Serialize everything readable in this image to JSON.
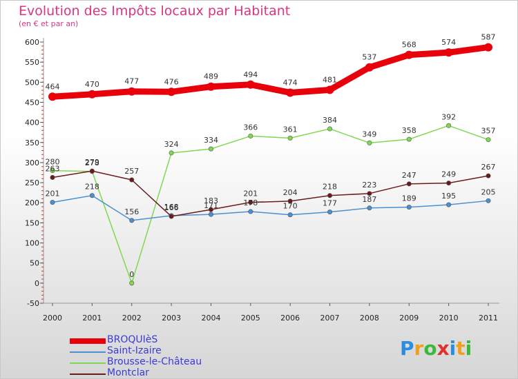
{
  "title": "Evolution des Impôts locaux par Habitant",
  "subtitle": "(en € et par an)",
  "logo": {
    "text": "Proxiti",
    "letters": [
      "P",
      "r",
      "o",
      "x",
      "i",
      "t",
      "i"
    ],
    "colors": [
      "#2a8de0",
      "#f0a020",
      "#3cb83c",
      "#e03030",
      "#2a8de0",
      "#f0a020",
      "#3cb83c"
    ]
  },
  "chart_data": {
    "type": "line",
    "categories": [
      "2000",
      "2001",
      "2002",
      "2003",
      "2004",
      "2005",
      "2006",
      "2007",
      "2008",
      "2009",
      "2010",
      "2011"
    ],
    "ylim": [
      -50,
      600
    ],
    "yticks": [
      -50,
      0,
      50,
      100,
      150,
      200,
      250,
      300,
      350,
      400,
      450,
      500,
      550,
      600
    ],
    "grid": false,
    "legend_position": "bottom-left",
    "series": [
      {
        "name": "BROQUIèS",
        "color": "#e8000b",
        "values": [
          464,
          470,
          477,
          476,
          489,
          494,
          474,
          481,
          537,
          568,
          574,
          587
        ],
        "labels": [
          "464",
          "470",
          "477",
          "476",
          "489",
          "494",
          "474",
          "481",
          "537",
          "568",
          "574",
          "587"
        ]
      },
      {
        "name": "Saint-Izaire",
        "color": "#4a90d0",
        "values": [
          201,
          218,
          156,
          168,
          171,
          178,
          170,
          177,
          187,
          189,
          195,
          205
        ],
        "labels": [
          "201",
          "218",
          "156",
          "168",
          "171",
          "178",
          "170",
          "177",
          "187",
          "189",
          "195",
          "205"
        ]
      },
      {
        "name": "Brousse-le-Château",
        "color": "#80d850",
        "values": [
          280,
          278,
          0,
          324,
          334,
          366,
          361,
          384,
          349,
          358,
          392,
          357
        ],
        "labels": [
          "280",
          "278",
          "0",
          "324",
          "334",
          "366",
          "361",
          "384",
          "349",
          "358",
          "392",
          "357"
        ]
      },
      {
        "name": "Montclar",
        "color": "#6b1a1a",
        "values": [
          263,
          279,
          257,
          166,
          183,
          201,
          204,
          218,
          223,
          247,
          249,
          267
        ],
        "labels": [
          "263",
          "279",
          "257",
          "166",
          "183",
          "201",
          "204",
          "218",
          "223",
          "247",
          "249",
          "267"
        ]
      }
    ]
  }
}
